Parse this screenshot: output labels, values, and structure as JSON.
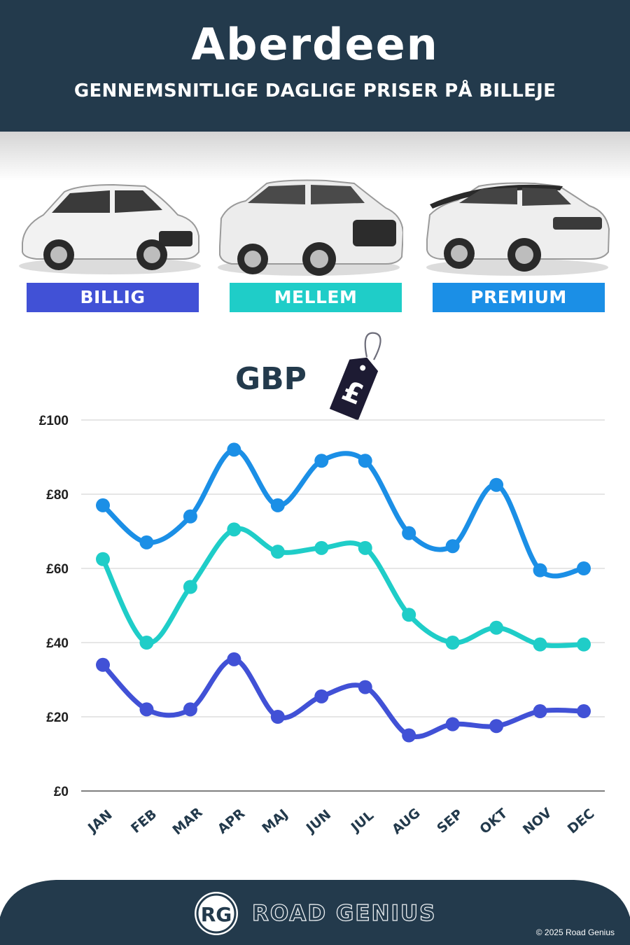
{
  "header": {
    "title": "Aberdeen",
    "subtitle": "GENNEMSNITLIGE DAGLIGE PRISER PÅ BILLEJE"
  },
  "categories": [
    {
      "label": "BILLIG",
      "color": "#4151d6"
    },
    {
      "label": "MELLEM",
      "color": "#1fcdc8"
    },
    {
      "label": "PREMIUM",
      "color": "#1b8fe6"
    }
  ],
  "currency": {
    "label": "GBP",
    "symbol": "£",
    "icon": "price-tag-icon"
  },
  "chart_data": {
    "type": "line",
    "title": "",
    "xlabel": "",
    "ylabel": "",
    "categories": [
      "JAN",
      "FEB",
      "MAR",
      "APR",
      "MAJ",
      "JUN",
      "JUL",
      "AUG",
      "SEP",
      "OKT",
      "NOV",
      "DEC"
    ],
    "ylim": [
      0,
      100
    ],
    "yticks": [
      "£0",
      "£20",
      "£40",
      "£60",
      "£80",
      "£100"
    ],
    "ytick_values": [
      0,
      20,
      40,
      60,
      80,
      100
    ],
    "grid": true,
    "series": [
      {
        "name": "PREMIUM",
        "color": "#1b8fe6",
        "values": [
          77,
          67,
          74,
          92,
          77,
          89,
          89,
          69.5,
          66,
          82.5,
          59.5,
          60
        ]
      },
      {
        "name": "MELLEM",
        "color": "#1fcdc8",
        "values": [
          62.5,
          40,
          55,
          70.5,
          64.5,
          65.5,
          65.5,
          47.5,
          40,
          44,
          39.5,
          39.5
        ]
      },
      {
        "name": "BILLIG",
        "color": "#4151d6",
        "values": [
          34,
          22,
          22,
          35.5,
          20,
          25.5,
          28,
          15,
          18,
          17.5,
          21.5,
          21.5
        ]
      }
    ]
  },
  "footer": {
    "brand": "ROAD GENIUS",
    "logo_text": "RG",
    "copyright": "© 2025 Road Genius",
    "color": "#233a4c"
  }
}
